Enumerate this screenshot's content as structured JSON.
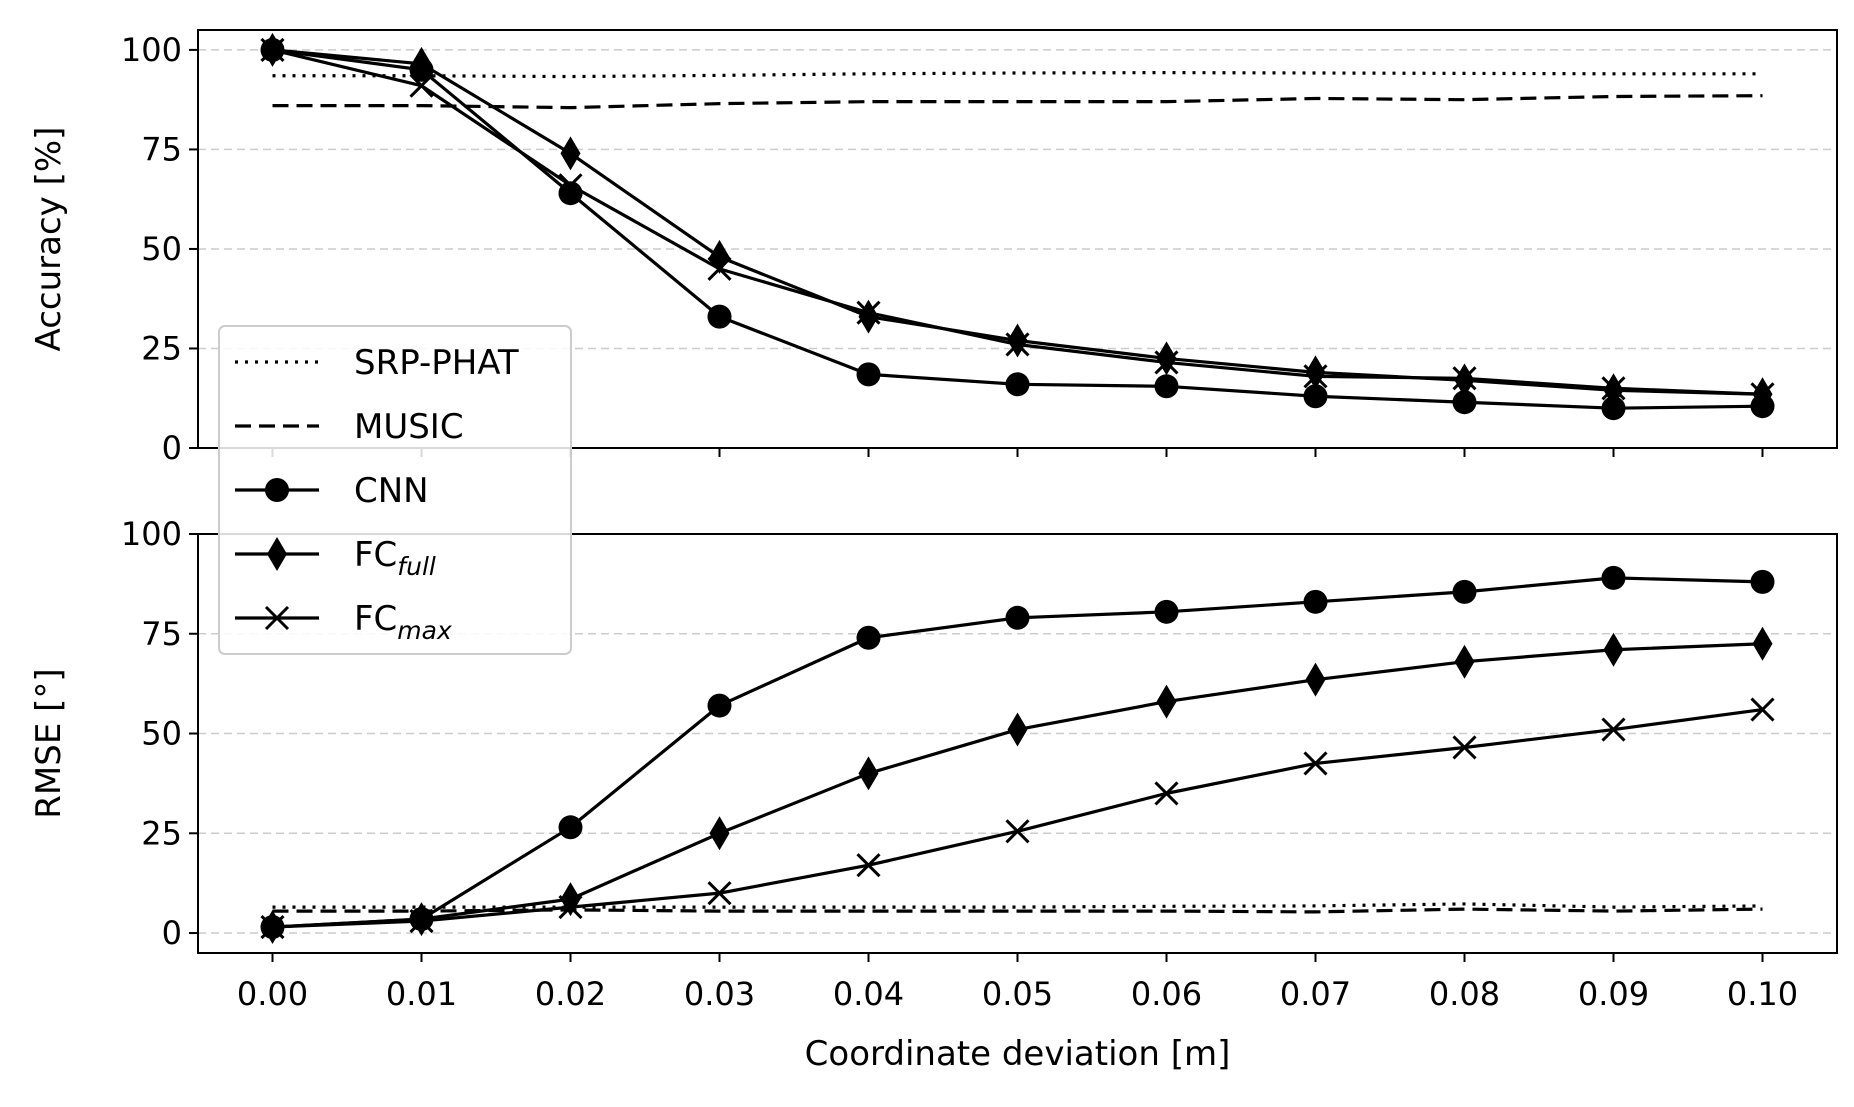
{
  "chart_data": [
    {
      "type": "line",
      "title": "",
      "xlabel": "",
      "ylabel": "Accuracy [%]",
      "ylim": [
        0,
        105
      ],
      "yticks": [
        "0",
        "25",
        "50",
        "75",
        "100"
      ],
      "grid": "horizontal dashed",
      "legend": "lower-left",
      "x": [
        0.0,
        0.01,
        0.02,
        0.03,
        0.04,
        0.05,
        0.06,
        0.07,
        0.08,
        0.09,
        0.1
      ],
      "series": [
        {
          "name": "SRP-PHAT",
          "style": "dotted",
          "marker": "none",
          "values": [
            93.5,
            93.5,
            93.3,
            93.6,
            94.0,
            94.2,
            94.3,
            94.2,
            94.1,
            94.0,
            94.0
          ]
        },
        {
          "name": "MUSIC",
          "style": "dashed",
          "marker": "none",
          "values": [
            86.0,
            86.0,
            85.5,
            86.5,
            87.0,
            87.0,
            87.0,
            87.8,
            87.5,
            88.3,
            88.5
          ]
        },
        {
          "name": "CNN",
          "style": "solid",
          "marker": "circle",
          "values": [
            100,
            95,
            64,
            33,
            18.5,
            16,
            15.5,
            13,
            11.5,
            10,
            10.5
          ]
        },
        {
          "name": "FC",
          "name_sub": "full",
          "style": "solid",
          "marker": "diamond",
          "values": [
            100,
            96.5,
            74,
            48,
            33,
            27,
            22.5,
            19,
            17,
            14.5,
            13.5
          ]
        },
        {
          "name": "FC",
          "name_sub": "max",
          "style": "solid",
          "marker": "x",
          "values": [
            100,
            91,
            66,
            45,
            34,
            26,
            21.5,
            18,
            17.5,
            15,
            13.5
          ]
        }
      ]
    },
    {
      "type": "line",
      "title": "",
      "xlabel": "Coordinate deviation [m]",
      "ylabel": "RMSE [°]",
      "ylim": [
        -5,
        100
      ],
      "yticks": [
        "0",
        "25",
        "50",
        "75",
        "100"
      ],
      "xticks": [
        "0.00",
        "0.01",
        "0.02",
        "0.03",
        "0.04",
        "0.05",
        "0.06",
        "0.07",
        "0.08",
        "0.09",
        "0.10"
      ],
      "grid": "horizontal dashed",
      "x": [
        0.0,
        0.01,
        0.02,
        0.03,
        0.04,
        0.05,
        0.06,
        0.07,
        0.08,
        0.09,
        0.1
      ],
      "series": [
        {
          "name": "SRP-PHAT",
          "style": "dotted",
          "marker": "none",
          "values": [
            6.5,
            6.5,
            6.5,
            6.5,
            6.5,
            6.5,
            6.7,
            6.8,
            7.3,
            6.5,
            6.8
          ]
        },
        {
          "name": "MUSIC",
          "style": "dashed",
          "marker": "none",
          "values": [
            5.5,
            5.5,
            5.8,
            5.5,
            5.5,
            5.5,
            5.5,
            5.3,
            6.0,
            5.5,
            6.0
          ]
        },
        {
          "name": "CNN",
          "style": "solid",
          "marker": "circle",
          "values": [
            1.5,
            3.5,
            26.5,
            57,
            74,
            79,
            80.5,
            83,
            85.5,
            89,
            88
          ]
        },
        {
          "name": "FC",
          "name_sub": "full",
          "style": "solid",
          "marker": "diamond",
          "values": [
            1.5,
            3.5,
            8.5,
            25,
            40,
            51,
            58,
            63.5,
            68,
            71,
            72.5
          ]
        },
        {
          "name": "FC",
          "name_sub": "max",
          "style": "solid",
          "marker": "x",
          "values": [
            1.5,
            3,
            6.5,
            10,
            17,
            25.5,
            35,
            42.5,
            46.5,
            51,
            56
          ]
        }
      ]
    }
  ]
}
